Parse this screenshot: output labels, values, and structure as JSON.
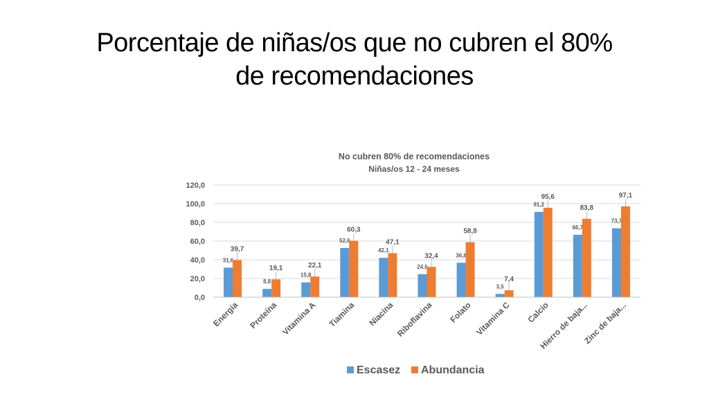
{
  "slide": {
    "title_line1": "Porcentaje de niñas/os que no cubren el 80%",
    "title_line2": "de recomendaciones"
  },
  "colors": {
    "escasez": "#5B9BD5",
    "abundancia": "#ED7D31",
    "gridline": "#D9D9D9",
    "text": "#595959"
  },
  "chart_data": {
    "type": "bar",
    "title": "No cubren 80% de recomendaciones",
    "subtitle": "Niñas/os 12 - 24 meses",
    "xlabel": "",
    "ylabel": "",
    "ylim": [
      0,
      120
    ],
    "yticks": [
      "0,0",
      "20,0",
      "40,0",
      "60,0",
      "80,0",
      "100,0",
      "120,0"
    ],
    "grid": true,
    "legend": "bottom",
    "categories": [
      "Energía",
      "Proteína",
      "Vitamina A",
      "Tiamina",
      "Niacina",
      "Riboflavina",
      "Folato",
      "Vitamina C",
      "Calcio",
      "Hierro de baja...",
      "Zinc de baja..."
    ],
    "series": [
      {
        "name": "Escasez",
        "values": [
          31.6,
          8.8,
          15.8,
          52.6,
          42.1,
          24.6,
          36.8,
          3.5,
          91.2,
          66.7,
          73.7
        ],
        "labels": [
          "31,6",
          "8,8",
          "15,8",
          "52,6",
          "42,1",
          "24,6",
          "36,8",
          "3,5",
          "91,2",
          "66,7",
          "73,7"
        ]
      },
      {
        "name": "Abundancia",
        "values": [
          39.7,
          19.1,
          22.1,
          60.3,
          47.1,
          32.4,
          58.8,
          7.4,
          95.6,
          83.8,
          97.1
        ],
        "labels": [
          "39,7",
          "19,1",
          "22,1",
          "60,3",
          "47,1",
          "32,4",
          "58,8",
          "7,4",
          "95,6",
          "83,8",
          "97,1"
        ]
      }
    ]
  }
}
